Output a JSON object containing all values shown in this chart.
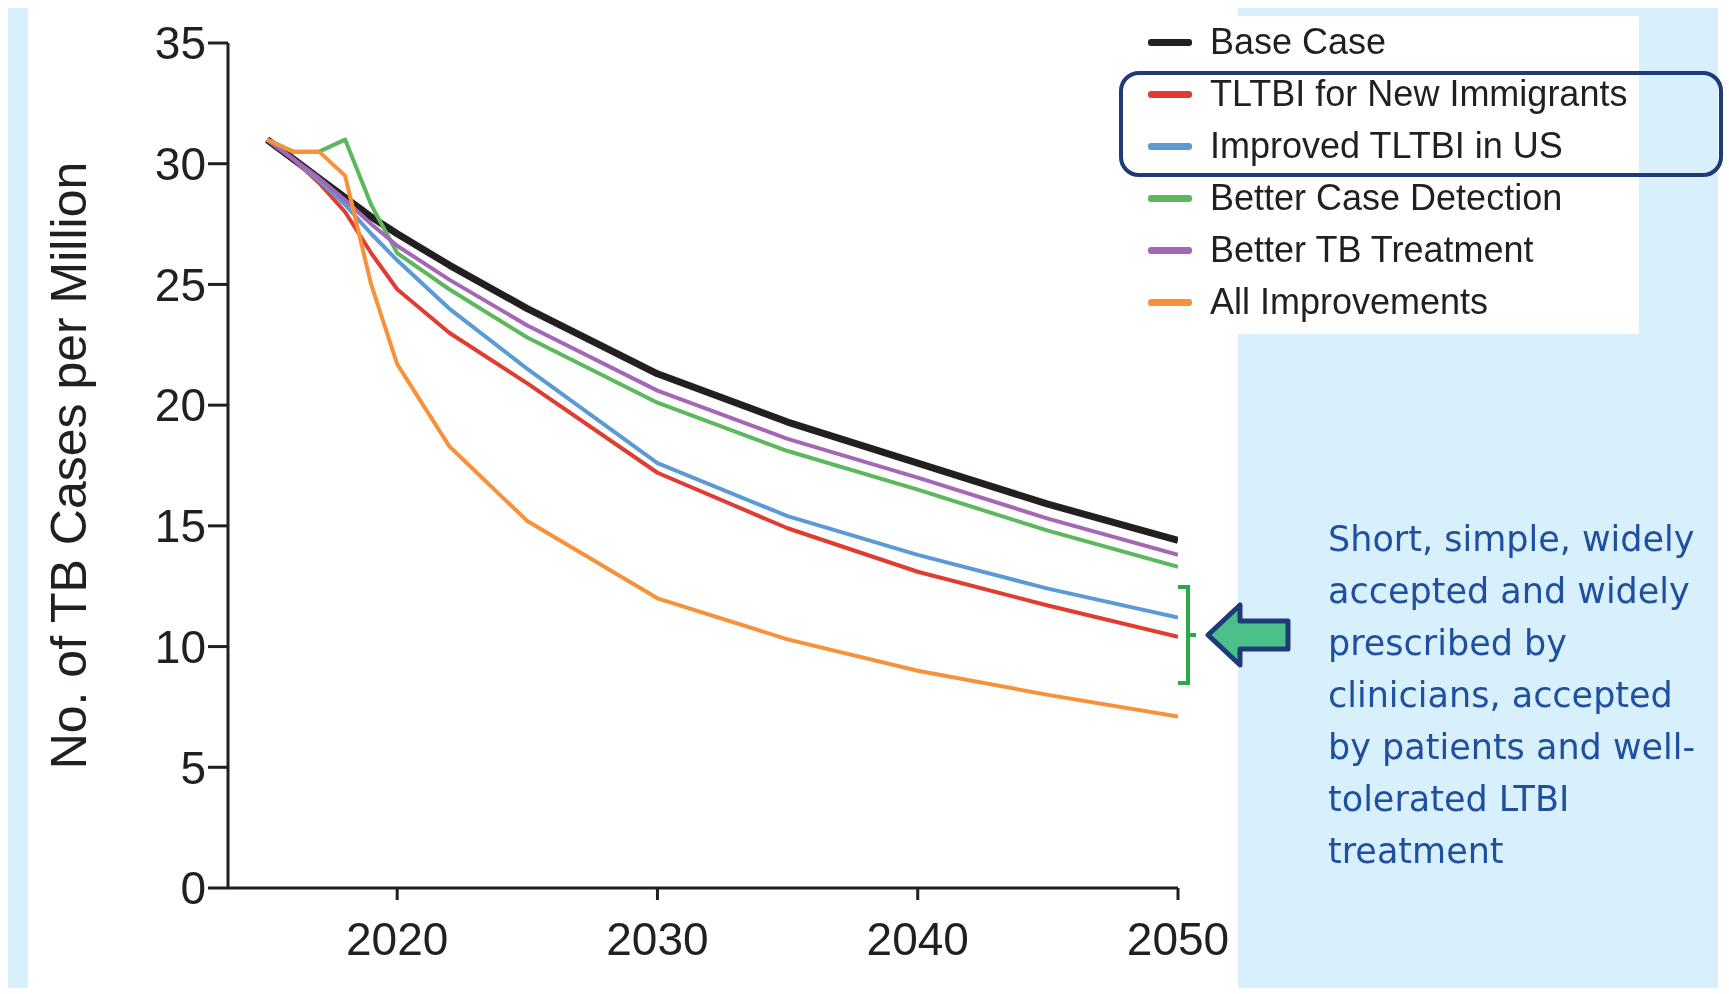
{
  "chart_data": {
    "type": "line",
    "ylabel": "No. of TB Cases per Million",
    "x": [
      2015,
      2016,
      2017,
      2018,
      2019,
      2020,
      2022,
      2025,
      2030,
      2035,
      2040,
      2045,
      2050
    ],
    "series": [
      {
        "name": "Base Case",
        "color": "#231f20",
        "values": [
          31,
          30.2,
          29.4,
          28.6,
          27.8,
          27.1,
          25.8,
          24,
          21.3,
          19.3,
          17.6,
          15.9,
          14.4
        ]
      },
      {
        "name": "TLTBI for New Immigrants",
        "color": "#e03c31",
        "values": [
          31,
          30.2,
          29.2,
          28,
          26.3,
          24.8,
          23,
          20.9,
          17.2,
          14.9,
          13.1,
          11.7,
          10.4
        ]
      },
      {
        "name": "Improved TLTBI in US",
        "color": "#5b9bd5",
        "values": [
          31,
          30.2,
          29.3,
          28.3,
          27.1,
          26,
          24,
          21.5,
          17.6,
          15.4,
          13.8,
          12.4,
          11.2
        ]
      },
      {
        "name": "Better Case Detection",
        "color": "#5cb85c",
        "values": [
          31,
          30.5,
          30.5,
          31,
          28.3,
          26.3,
          24.8,
          22.8,
          20.1,
          18.1,
          16.5,
          14.8,
          13.3
        ]
      },
      {
        "name": "Better TB Treatment",
        "color": "#a666b8",
        "values": [
          31,
          30.2,
          29.4,
          28.5,
          27.5,
          26.6,
          25.2,
          23.3,
          20.6,
          18.6,
          17,
          15.3,
          13.8
        ]
      },
      {
        "name": "All Improvements",
        "color": "#f7923a",
        "values": [
          31,
          30.5,
          30.5,
          29.5,
          25,
          21.7,
          18.3,
          15.2,
          12,
          10.3,
          9,
          8,
          7.1
        ]
      }
    ],
    "xlim": [
      2013.5,
      2050
    ],
    "xticks": [
      2020,
      2030,
      2040,
      2050
    ],
    "ylim": [
      0,
      35
    ],
    "yticks": [
      0,
      5,
      10,
      15,
      20,
      25,
      30,
      35
    ],
    "grid": false,
    "legend": "top right",
    "marker": "none",
    "line_style": "solid",
    "annotations": [
      "Short, simple, widely accepted and widely prescribed by clinicians, accepted by patients and well-tolerated LTBI treatment"
    ]
  }
}
